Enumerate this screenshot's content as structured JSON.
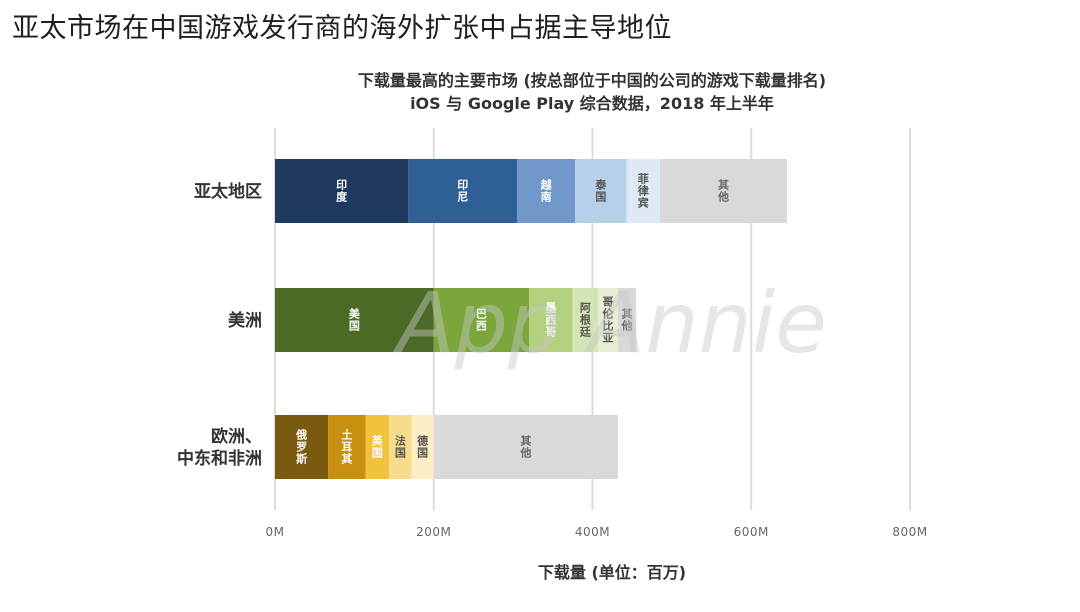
{
  "page": {
    "title": "亚太市场在中国游戏发行商的海外扩张中占据主导地位"
  },
  "chart_data": {
    "type": "bar",
    "orientation": "horizontal",
    "stacked": true,
    "title": "下载量最高的主要市场 (按总部位于中国的公司的游戏下载量排名)",
    "subtitle": "iOS 与 Google Play 综合数据，2018 年上半年",
    "xlabel": "下载量 (单位：百万)",
    "ylabel": "",
    "xlim": [
      0,
      800
    ],
    "x_ticks": [
      "0M",
      "200M",
      "400M",
      "600M",
      "800M"
    ],
    "grid": true,
    "watermark": "App Annie",
    "categories": [
      {
        "label": "亚太地区",
        "segments": [
          {
            "name": "印度",
            "value": 168,
            "color": "#1f3a5f",
            "text_color": "#ffffff"
          },
          {
            "name": "印尼",
            "value": 137,
            "color": "#2e5f95",
            "text_color": "#ffffff"
          },
          {
            "name": "越南",
            "value": 73,
            "color": "#6f97c9",
            "text_color": "#ffffff"
          },
          {
            "name": "泰国",
            "value": 65,
            "color": "#b8cfe8",
            "text_color": "#555555"
          },
          {
            "name": "菲律宾",
            "value": 42,
            "color": "#dfe9f5",
            "text_color": "#555555"
          },
          {
            "name": "其他",
            "value": 160,
            "color": "#d9d9d9",
            "text_color": "#666666"
          }
        ]
      },
      {
        "label": "美洲",
        "segments": [
          {
            "name": "美国",
            "value": 200,
            "color": "#4a6a26",
            "text_color": "#ffffff"
          },
          {
            "name": "巴西",
            "value": 120,
            "color": "#7aa63c",
            "text_color": "#ffffff"
          },
          {
            "name": "墨西哥",
            "value": 55,
            "color": "#b3d07e",
            "text_color": "#ffffff"
          },
          {
            "name": "阿根廷",
            "value": 32,
            "color": "#d4e5b5",
            "text_color": "#555555"
          },
          {
            "name": "哥伦比亚",
            "value": 25,
            "color": "#e6efd6",
            "text_color": "#555555"
          },
          {
            "name": "其他",
            "value": 23,
            "color": "#d9d9d9",
            "text_color": "#666666"
          }
        ]
      },
      {
        "label": "欧洲、\n中东和非洲",
        "segments": [
          {
            "name": "俄罗斯",
            "value": 67,
            "color": "#7a5a10",
            "text_color": "#ffffff"
          },
          {
            "name": "土耳其",
            "value": 47,
            "color": "#c7900f",
            "text_color": "#ffffff"
          },
          {
            "name": "英国",
            "value": 30,
            "color": "#f2c23d",
            "text_color": "#ffffff"
          },
          {
            "name": "法国",
            "value": 28,
            "color": "#f7dc8e",
            "text_color": "#555555"
          },
          {
            "name": "德国",
            "value": 28,
            "color": "#fbeec4",
            "text_color": "#555555"
          },
          {
            "name": "其他",
            "value": 232,
            "color": "#d9d9d9",
            "text_color": "#666666"
          }
        ]
      }
    ]
  }
}
